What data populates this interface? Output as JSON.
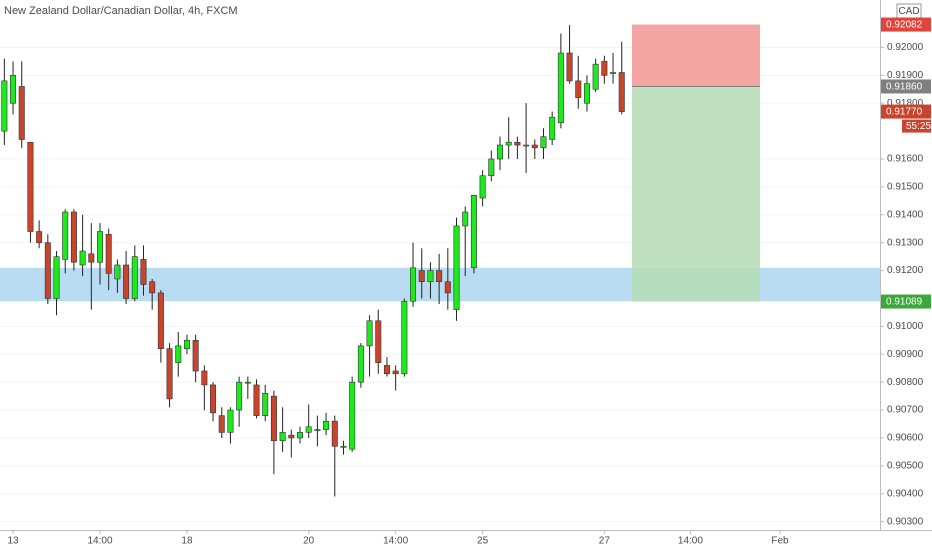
{
  "chart_data": {
    "type": "candlestick",
    "title": "New Zealand Dollar/Canadian Dollar, 4h, FXCM",
    "currency": "CAD",
    "x": [
      0,
      1,
      2,
      3,
      4,
      5,
      6,
      7,
      8,
      9,
      10,
      11,
      12,
      13,
      14,
      15,
      16,
      17,
      18,
      19,
      20,
      21,
      22,
      23,
      24,
      25,
      26,
      27,
      28,
      29,
      30,
      31,
      32,
      33,
      34,
      35,
      36,
      37,
      38,
      39,
      40,
      41,
      42,
      43,
      44,
      45,
      46,
      47,
      48,
      49,
      50,
      51,
      52,
      53,
      54,
      55,
      56,
      57,
      58,
      59,
      60,
      61,
      62,
      63,
      64,
      65,
      66,
      67,
      68,
      69,
      70,
      71
    ],
    "open": [
      0.917,
      0.918,
      0.9186,
      0.9166,
      0.9134,
      0.913,
      0.911,
      0.9124,
      0.9141,
      0.9122,
      0.9126,
      0.9123,
      0.9133,
      0.9117,
      0.9122,
      0.911,
      0.9124,
      0.9116,
      0.9112,
      0.9092,
      0.9087,
      0.9092,
      0.9095,
      0.9084,
      0.9079,
      0.9068,
      0.9062,
      0.907,
      0.908,
      0.9079,
      0.9068,
      0.9075,
      0.9059,
      0.9061,
      0.906,
      0.9062,
      0.9063,
      0.9063,
      0.9066,
      0.9057,
      0.9056,
      0.908,
      0.9093,
      0.9102,
      0.9086,
      0.9084,
      0.9083,
      0.9109,
      0.912,
      0.9116,
      0.912,
      0.9116,
      0.9106,
      0.9136,
      0.9121,
      0.9146,
      0.9154,
      0.916,
      0.9165,
      0.9166,
      0.9165,
      0.9165,
      0.9164,
      0.9167,
      0.9173,
      0.9198,
      0.9188,
      0.918,
      0.9185,
      0.9195,
      0.9191,
      0.9191
    ],
    "high": [
      0.9196,
      0.9195,
      0.9195,
      0.9166,
      0.9138,
      0.9133,
      0.9127,
      0.9142,
      0.9142,
      0.914,
      0.9137,
      0.9137,
      0.9135,
      0.9124,
      0.9127,
      0.9129,
      0.9129,
      0.9117,
      0.9113,
      0.9094,
      0.9098,
      0.9097,
      0.9097,
      0.9086,
      0.908,
      0.9071,
      0.9071,
      0.9082,
      0.9082,
      0.9081,
      0.9079,
      0.9077,
      0.9071,
      0.9063,
      0.9064,
      0.9072,
      0.9068,
      0.9069,
      0.9068,
      0.9059,
      0.9082,
      0.9094,
      0.9104,
      0.9106,
      0.9089,
      0.9086,
      0.911,
      0.913,
      0.9128,
      0.9123,
      0.9126,
      0.9128,
      0.9139,
      0.9143,
      0.9147,
      0.9156,
      0.9163,
      0.9168,
      0.9175,
      0.9168,
      0.918,
      0.9167,
      0.9171,
      0.9177,
      0.9205,
      0.9208,
      0.9197,
      0.919,
      0.9196,
      0.9197,
      0.9198,
      0.9202
    ],
    "low": [
      0.9165,
      0.9176,
      0.9164,
      0.913,
      0.9128,
      0.9108,
      0.9104,
      0.9119,
      0.912,
      0.9118,
      0.9106,
      0.9115,
      0.9113,
      0.9112,
      0.9108,
      0.9109,
      0.9111,
      0.9106,
      0.9087,
      0.9071,
      0.9082,
      0.909,
      0.908,
      0.907,
      0.9066,
      0.906,
      0.9058,
      0.9064,
      0.9074,
      0.9067,
      0.9066,
      0.9047,
      0.9055,
      0.9053,
      0.9058,
      0.906,
      0.9057,
      0.9061,
      0.9039,
      0.9054,
      0.9055,
      0.9078,
      0.9082,
      0.9083,
      0.9082,
      0.9077,
      0.9082,
      0.9107,
      0.911,
      0.911,
      0.9108,
      0.9106,
      0.9102,
      0.9118,
      0.9119,
      0.9143,
      0.9152,
      0.9156,
      0.916,
      0.916,
      0.9155,
      0.916,
      0.916,
      0.9165,
      0.9171,
      0.9187,
      0.9178,
      0.9177,
      0.9184,
      0.9187,
      0.9187,
      0.9176
    ],
    "close": [
      0.9188,
      0.919,
      0.9167,
      0.9134,
      0.913,
      0.911,
      0.9125,
      0.9141,
      0.9123,
      0.9127,
      0.9123,
      0.9134,
      0.9119,
      0.9122,
      0.911,
      0.9125,
      0.9115,
      0.9112,
      0.9092,
      0.9074,
      0.9093,
      0.9095,
      0.9084,
      0.9079,
      0.9069,
      0.9062,
      0.907,
      0.908,
      0.908,
      0.9068,
      0.9076,
      0.9059,
      0.9062,
      0.906,
      0.9062,
      0.9064,
      0.9063,
      0.9066,
      0.9057,
      0.9057,
      0.908,
      0.9093,
      0.9102,
      0.9087,
      0.9083,
      0.9083,
      0.9109,
      0.9121,
      0.9116,
      0.912,
      0.9116,
      0.9112,
      0.9136,
      0.9141,
      0.9147,
      0.9154,
      0.916,
      0.9165,
      0.9166,
      0.9165,
      0.9165,
      0.9164,
      0.9168,
      0.9175,
      0.9198,
      0.9188,
      0.9182,
      0.9187,
      0.9194,
      0.919,
      0.9191,
      0.9177
    ],
    "up_color": "#1ee81e",
    "down_color": "#c9442c",
    "xlim": [
      -0.5,
      100.7
    ],
    "xticks": [
      {
        "value": 1,
        "label": "13"
      },
      {
        "value": 11,
        "label": "14:00"
      },
      {
        "value": 21,
        "label": "18"
      },
      {
        "value": 35,
        "label": "20"
      },
      {
        "value": 45,
        "label": "14:00"
      },
      {
        "value": 55,
        "label": "25"
      },
      {
        "value": 69,
        "label": "27"
      },
      {
        "value": 78.9,
        "label": "14:00"
      },
      {
        "value": 89.2,
        "label": "Feb"
      }
    ],
    "ylim": [
      0.9027,
      0.9217
    ],
    "yticks": [
      {
        "value": 0.903,
        "label": "0.90300"
      },
      {
        "value": 0.904,
        "label": "0.90400"
      },
      {
        "value": 0.905,
        "label": "0.90500"
      },
      {
        "value": 0.906,
        "label": "0.90600"
      },
      {
        "value": 0.907,
        "label": "0.90700"
      },
      {
        "value": 0.908,
        "label": "0.90800"
      },
      {
        "value": 0.909,
        "label": "0.90900"
      },
      {
        "value": 0.91,
        "label": "0.91000"
      },
      {
        "value": 0.912,
        "label": "0.91200"
      },
      {
        "value": 0.913,
        "label": "0.91300"
      },
      {
        "value": 0.914,
        "label": "0.91400"
      },
      {
        "value": 0.915,
        "label": "0.91500"
      },
      {
        "value": 0.916,
        "label": "0.91600"
      },
      {
        "value": 0.918,
        "label": "0.91800"
      },
      {
        "value": 0.919,
        "label": "0.91900"
      },
      {
        "value": 0.92,
        "label": "0.92000"
      }
    ],
    "zone": {
      "from": 0.9109,
      "to": 0.9121,
      "color": "#b3d8f2"
    },
    "position": {
      "stop": {
        "value": 0.92082,
        "label": "0.92082",
        "color": "#f2a5a1",
        "tag_color": "#e0443c"
      },
      "entry": {
        "value": 0.9186,
        "label": "0.91860",
        "color": "#7f7f7f"
      },
      "target": {
        "value": 0.91089,
        "label": "0.91089",
        "color": "#b5dcb4",
        "tag_color": "#3aa83a"
      }
    },
    "last_price": {
      "value": 0.9177,
      "label": "0.91770",
      "color": "#c9442c"
    },
    "countdown": "55:25"
  }
}
